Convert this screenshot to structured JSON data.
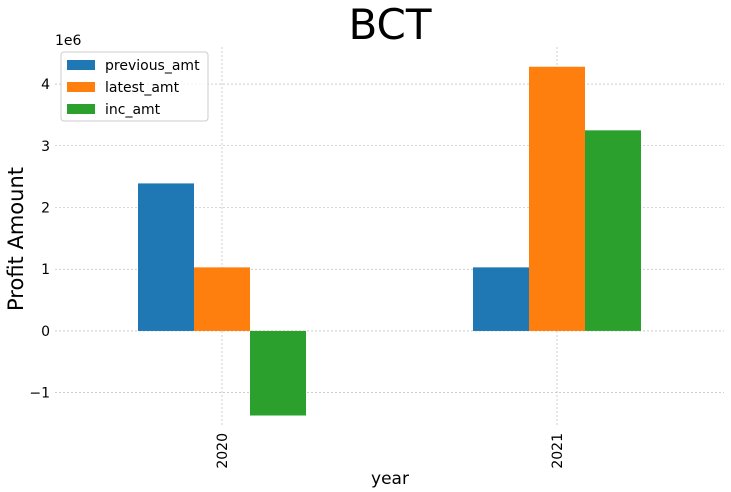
{
  "chart_data": {
    "type": "bar",
    "title": "BCT",
    "xlabel": "year",
    "ylabel": "Profit Amount",
    "y_offset_label": "1e6",
    "categories": [
      "2020",
      "2021"
    ],
    "series": [
      {
        "name": "previous_amt",
        "color": "#1f77b4",
        "values": [
          2390000,
          1030000
        ]
      },
      {
        "name": "latest_amt",
        "color": "#ff7f0e",
        "values": [
          1030000,
          4280000
        ]
      },
      {
        "name": "inc_amt",
        "color": "#2ca02c",
        "values": [
          -1370000,
          3250000
        ]
      }
    ],
    "yticks": [
      -1000000,
      0,
      1000000,
      2000000,
      3000000,
      4000000
    ],
    "ytick_labels": [
      "−1",
      "0",
      "1",
      "2",
      "3",
      "4"
    ],
    "ylim": [
      -1540000,
      4600000
    ],
    "grid": true,
    "legend_position": "top-left"
  }
}
